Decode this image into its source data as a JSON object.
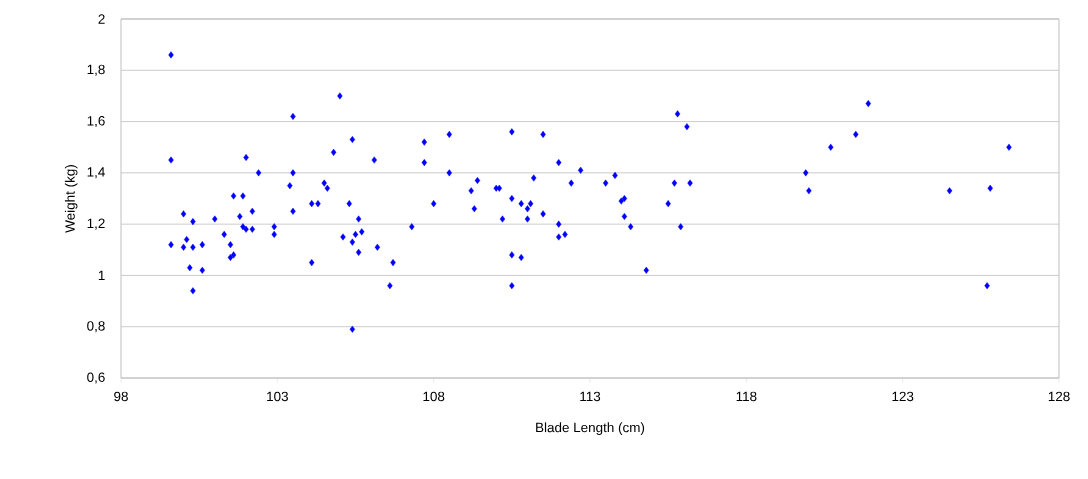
{
  "chart_data": {
    "type": "scatter",
    "xlabel": "Blade Length (cm)",
    "ylabel": "Weight (kg)",
    "x": [
      99.6,
      99.6,
      99.6,
      100.0,
      100.3,
      100.1,
      100.0,
      100.3,
      100.6,
      100.2,
      100.6,
      100.3,
      101.0,
      101.3,
      101.5,
      101.5,
      101.6,
      101.6,
      101.9,
      101.8,
      101.9,
      102.0,
      102.2,
      102.2,
      102.0,
      102.4,
      102.9,
      102.9,
      103.4,
      103.5,
      103.5,
      103.5,
      104.1,
      104.3,
      104.1,
      104.5,
      104.6,
      104.8,
      105.0,
      105.4,
      105.3,
      105.1,
      105.4,
      105.5,
      105.7,
      105.6,
      105.6,
      105.4,
      106.1,
      106.2,
      106.6,
      106.7,
      107.3,
      107.7,
      107.7,
      108.0,
      108.5,
      108.5,
      109.2,
      109.4,
      109.3,
      110.0,
      110.1,
      110.2,
      110.5,
      110.5,
      110.5,
      110.5,
      110.8,
      110.8,
      111.0,
      111.1,
      111.0,
      111.2,
      111.5,
      111.5,
      112.0,
      112.0,
      112.0,
      112.2,
      112.4,
      112.7,
      113.5,
      113.8,
      114.0,
      114.1,
      114.1,
      114.3,
      114.8,
      115.5,
      115.7,
      115.8,
      116.1,
      116.2,
      115.9,
      119.9,
      120.0,
      120.7,
      121.5,
      121.9,
      124.5,
      125.7,
      125.8,
      126.4
    ],
    "values": [
      1.86,
      1.45,
      1.12,
      1.24,
      1.21,
      1.14,
      1.11,
      1.11,
      1.12,
      1.03,
      1.02,
      0.94,
      1.22,
      1.16,
      1.12,
      1.07,
      1.08,
      1.31,
      1.31,
      1.23,
      1.19,
      1.18,
      1.25,
      1.18,
      1.46,
      1.4,
      1.19,
      1.16,
      1.35,
      1.4,
      1.25,
      1.62,
      1.28,
      1.28,
      1.05,
      1.36,
      1.34,
      1.48,
      1.7,
      1.53,
      1.28,
      1.15,
      1.13,
      1.16,
      1.17,
      1.22,
      1.09,
      0.79,
      1.45,
      1.11,
      0.96,
      1.05,
      1.19,
      1.52,
      1.44,
      1.28,
      1.55,
      1.4,
      1.33,
      1.37,
      1.26,
      1.34,
      1.34,
      1.22,
      1.56,
      1.3,
      1.08,
      0.96,
      1.28,
      1.07,
      1.26,
      1.28,
      1.22,
      1.38,
      1.55,
      1.24,
      1.44,
      1.2,
      1.15,
      1.16,
      1.36,
      1.41,
      1.36,
      1.39,
      1.29,
      1.3,
      1.23,
      1.19,
      1.02,
      1.28,
      1.36,
      1.63,
      1.58,
      1.36,
      1.19,
      1.4,
      1.33,
      1.5,
      1.55,
      1.67,
      1.33,
      0.96,
      1.34,
      1.5
    ],
    "color": "#0000ff",
    "marker": "diamond",
    "grid": "y",
    "xlim": [
      98,
      128
    ],
    "xticks": [
      98,
      103,
      108,
      113,
      118,
      123,
      128
    ],
    "ylim": [
      0.6,
      2
    ],
    "yticks": [
      {
        "value": 0.6,
        "label": "0,6"
      },
      {
        "value": 0.8,
        "label": "0,8"
      },
      1,
      {
        "value": 1.2,
        "label": "1,2"
      },
      {
        "value": 1.4,
        "label": "1,4"
      },
      {
        "value": 1.6,
        "label": "1,6"
      },
      {
        "value": 1.8,
        "label": "1,8"
      },
      2
    ]
  }
}
